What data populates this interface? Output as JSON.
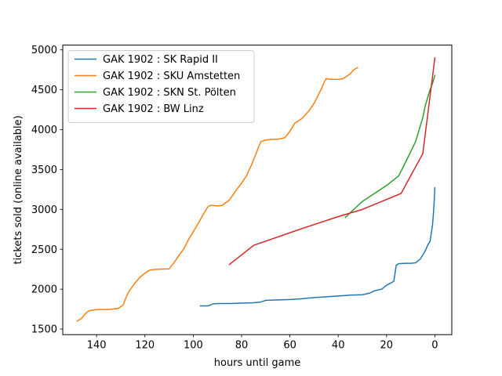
{
  "chart_data": {
    "type": "line",
    "title": "",
    "xlabel": "hours until game",
    "ylabel": "tickets sold (online available)",
    "xlim": [
      154,
      -7
    ],
    "ylim": [
      1430,
      5060
    ],
    "x_ticks": [
      140,
      120,
      100,
      80,
      60,
      40,
      20,
      0
    ],
    "y_ticks": [
      1500,
      2000,
      2500,
      3000,
      3500,
      4000,
      4500,
      5000
    ],
    "x_reversed": true,
    "grid": false,
    "legend_position": "top-left",
    "series": [
      {
        "name": "GAK 1902 : SK Rapid II",
        "color": "#1f77b4",
        "x": [
          97,
          94,
          93,
          92,
          90,
          85,
          80,
          75,
          72,
          70,
          65,
          60,
          55,
          50,
          45,
          40,
          35,
          30,
          27,
          25,
          22,
          20,
          18,
          17,
          16,
          15,
          12,
          10,
          8,
          6,
          4,
          3,
          2,
          1.5,
          1,
          0.6,
          0.3,
          0
        ],
        "y": [
          1790,
          1790,
          1800,
          1815,
          1820,
          1820,
          1825,
          1830,
          1840,
          1860,
          1865,
          1870,
          1880,
          1895,
          1905,
          1915,
          1925,
          1930,
          1950,
          1980,
          2000,
          2050,
          2080,
          2100,
          2300,
          2320,
          2325,
          2325,
          2330,
          2380,
          2480,
          2550,
          2600,
          2700,
          2800,
          2950,
          3100,
          3270
        ]
      },
      {
        "name": "GAK 1902 : SKU Amstetten",
        "color": "#ff7f0e",
        "x": [
          148,
          146,
          145,
          144,
          143,
          140,
          135,
          131,
          129,
          128,
          127,
          126,
          124,
          122,
          120,
          118,
          115,
          110,
          108,
          106,
          104,
          102,
          100,
          98,
          96,
          94,
          93,
          92,
          90,
          88,
          85,
          82,
          80,
          78,
          76,
          74,
          73,
          72,
          70,
          67,
          65,
          62,
          60,
          58,
          55,
          52,
          50,
          48,
          47,
          46,
          45,
          43,
          40,
          38,
          36,
          35,
          34,
          33,
          32
        ],
        "y": [
          1600,
          1640,
          1680,
          1710,
          1730,
          1745,
          1745,
          1760,
          1800,
          1880,
          1950,
          2000,
          2080,
          2150,
          2200,
          2240,
          2250,
          2255,
          2330,
          2420,
          2500,
          2620,
          2720,
          2820,
          2930,
          3030,
          3050,
          3050,
          3045,
          3050,
          3120,
          3250,
          3330,
          3420,
          3550,
          3700,
          3780,
          3850,
          3870,
          3880,
          3880,
          3900,
          3980,
          4080,
          4140,
          4240,
          4330,
          4450,
          4510,
          4580,
          4640,
          4630,
          4630,
          4640,
          4680,
          4700,
          4740,
          4760,
          4780
        ]
      },
      {
        "name": "GAK 1902 : SKN St. Pölten",
        "color": "#2ca02c",
        "x": [
          37,
          35,
          30,
          20,
          15,
          12,
          8,
          5,
          4,
          3,
          2,
          1,
          0
        ],
        "y": [
          2900,
          2960,
          3100,
          3300,
          3420,
          3600,
          3850,
          4150,
          4300,
          4400,
          4500,
          4580,
          4680
        ]
      },
      {
        "name": "GAK 1902 : BW Linz",
        "color": "#d62728",
        "x": [
          85,
          75,
          55,
          40,
          30,
          14,
          5,
          0
        ],
        "y": [
          2310,
          2550,
          2760,
          2910,
          3000,
          3200,
          3700,
          4900
        ]
      }
    ]
  }
}
